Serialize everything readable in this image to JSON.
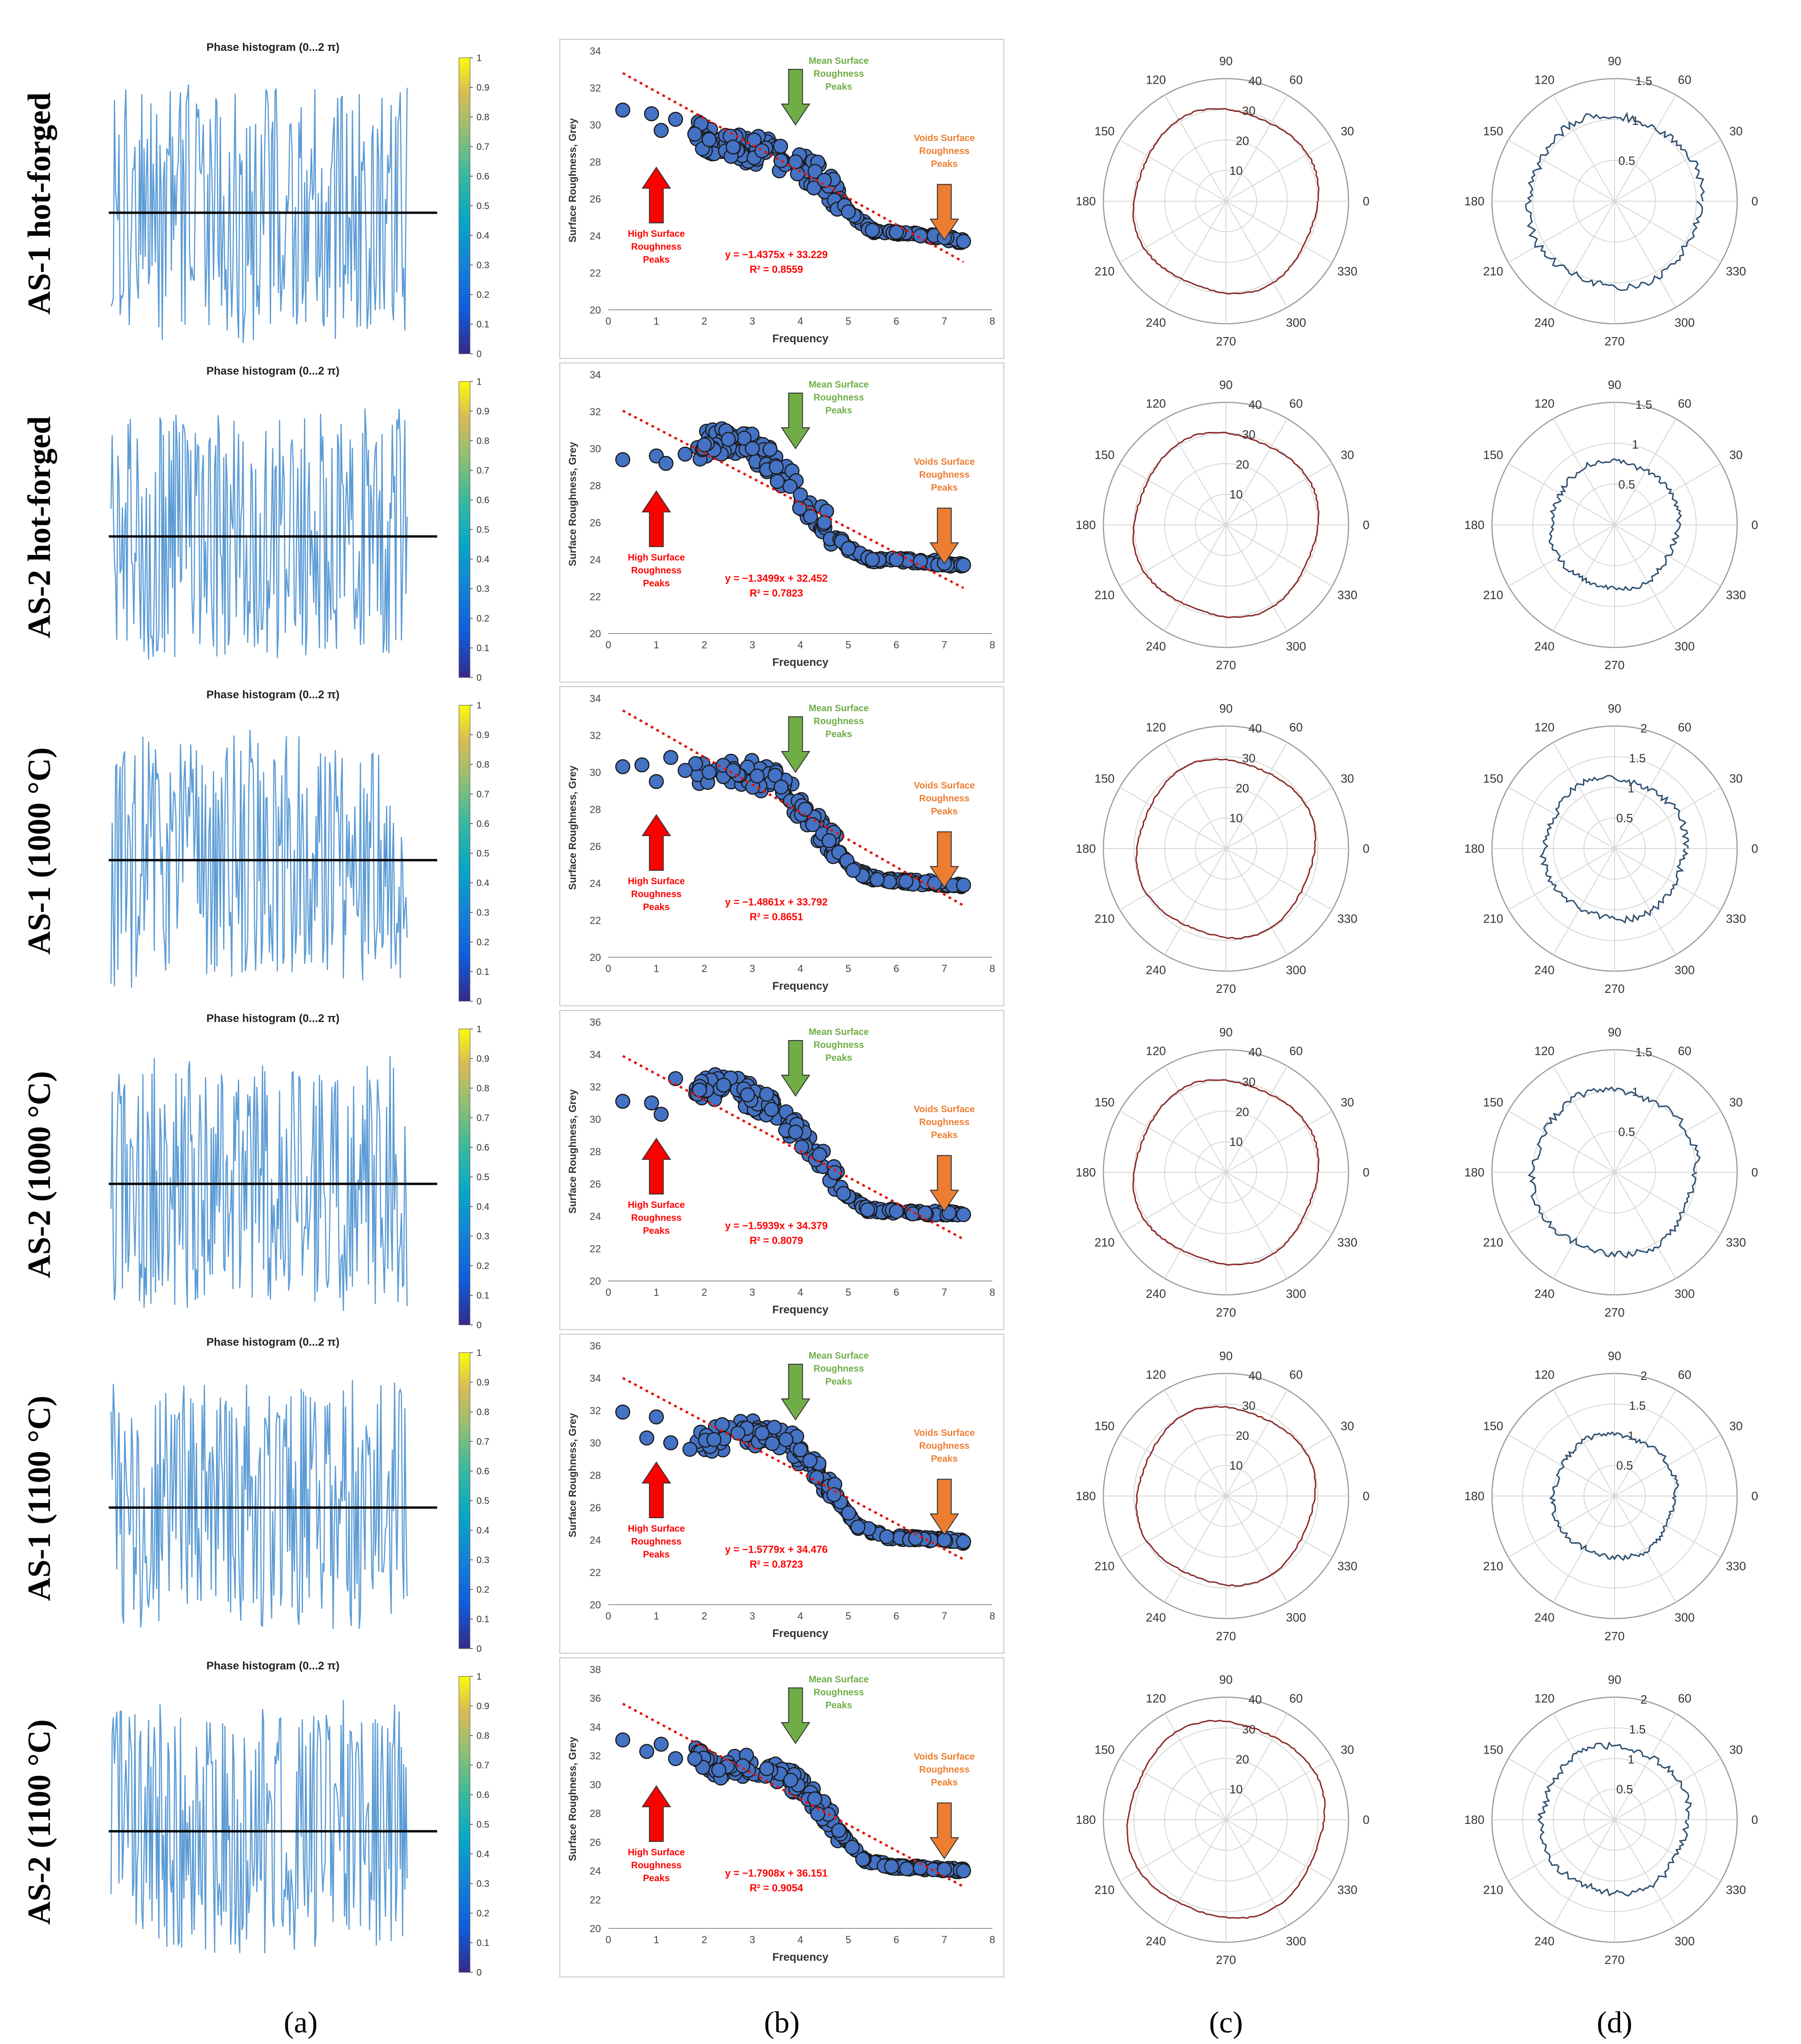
{
  "figure": {
    "row_labels": [
      "AS-1 hot-forged",
      "AS-2 hot-forged",
      "AS-1 (1000 °C)",
      "AS-2 (1000 °C)",
      "AS-1 (1100 °C)",
      "AS-2 (1100 °C)"
    ],
    "column_labels": [
      "(a)",
      "(b)",
      "(c)",
      "(d)"
    ]
  },
  "colors": {
    "phase_line": "#5b9bd5",
    "scatter_fill": "#4472c4",
    "trend": "#e3140f",
    "polar_c": "#8b2a2a",
    "polar_d": "#2f4f6f",
    "green": "#70ad47",
    "orange": "#ed7d31",
    "red": "#ff0000"
  },
  "phase": {
    "title": "Phase histogram (0...2 π)",
    "colorbar_ticks": [
      "0",
      "0.1",
      "0.2",
      "0.3",
      "0.4",
      "0.5",
      "0.6",
      "0.7",
      "0.8",
      "0.9",
      "1"
    ],
    "colormap": "parula"
  },
  "roughness": {
    "xlabel": "Frequency",
    "ylabel": "Surface Roughness, Grey",
    "x_ticks": [
      "0",
      "1",
      "2",
      "3",
      "4",
      "5",
      "6",
      "7",
      "8"
    ],
    "annot_high": "High Surface Roughness Peaks",
    "annot_mean": "Mean Surface Roughness Peaks",
    "annot_voids": "Voids Surface Roughness Peaks"
  },
  "polar_c": {
    "radial_ticks": [
      "10",
      "20",
      "30",
      "40"
    ],
    "angles": [
      "0",
      "30",
      "60",
      "90",
      "120",
      "150",
      "180",
      "210",
      "240",
      "270",
      "300",
      "330"
    ]
  },
  "polar_d": {
    "angles": [
      "0",
      "30",
      "60",
      "90",
      "120",
      "150",
      "180",
      "210",
      "240",
      "270",
      "300",
      "330"
    ]
  },
  "chart_data": [
    {
      "type": "line",
      "panel": "a",
      "row": 1,
      "title": "Phase histogram (0...2 π)",
      "colorbar": [
        0,
        1
      ]
    },
    {
      "type": "scatter",
      "panel": "b",
      "row": 1,
      "xlabel": "Frequency",
      "ylabel": "Surface Roughness, Grey",
      "xlim": [
        0,
        8
      ],
      "ylim": [
        20,
        34
      ],
      "y_ticks": [
        "20",
        "22",
        "24",
        "26",
        "28",
        "30",
        "32",
        "34"
      ],
      "equation": "y = −1.4375x + 33.229",
      "r2": "R² = 0.8559",
      "slope": -1.4375,
      "intercept": 33.229,
      "x": [
        0.3,
        0.9,
        1.1,
        1.4,
        1.8,
        2.1,
        2.6,
        3.2,
        3.9,
        4.5,
        5.0,
        5.5,
        6.0,
        6.5,
        7.0,
        7.4
      ],
      "y": [
        30.8,
        30.6,
        29.7,
        30.3,
        29.5,
        29.2,
        28.8,
        28.6,
        28.0,
        27.0,
        25.3,
        24.3,
        24.2,
        24.0,
        23.9,
        23.7
      ]
    },
    {
      "type": "polar",
      "panel": "c",
      "row": 1,
      "rlim": [
        0,
        40
      ],
      "r_ticks": [
        "10",
        "20",
        "30",
        "40"
      ],
      "radius_mean": 30
    },
    {
      "type": "polar",
      "panel": "d",
      "row": 1,
      "rlim": [
        0,
        1.5
      ],
      "r_ticks": [
        "0.5",
        "1",
        "1.5"
      ],
      "radius_mean": 1.05
    },
    {
      "type": "line",
      "panel": "a",
      "row": 2,
      "title": "Phase histogram (0...2 π)",
      "colorbar": [
        0,
        1
      ]
    },
    {
      "type": "scatter",
      "panel": "b",
      "row": 2,
      "xlabel": "Frequency",
      "ylabel": "Surface Roughness, Grey",
      "xlim": [
        0,
        8
      ],
      "ylim": [
        20,
        34
      ],
      "y_ticks": [
        "20",
        "22",
        "24",
        "26",
        "28",
        "30",
        "32",
        "34"
      ],
      "equation": "y = −1.3499x + 32.452",
      "r2": "R² = 0.7823",
      "slope": -1.3499,
      "intercept": 32.452,
      "x": [
        0.3,
        1.0,
        1.2,
        1.6,
        2.0,
        2.5,
        3.0,
        3.5,
        4.0,
        4.5,
        5.0,
        5.5,
        6.0,
        6.5,
        7.0,
        7.4
      ],
      "y": [
        29.4,
        29.6,
        29.2,
        29.7,
        30.2,
        30.5,
        30.0,
        29.0,
        27.5,
        26.0,
        24.6,
        24.0,
        24.0,
        23.9,
        23.8,
        23.7
      ]
    },
    {
      "type": "polar",
      "panel": "c",
      "row": 2,
      "rlim": [
        0,
        40
      ],
      "r_ticks": [
        "10",
        "20",
        "30",
        "40"
      ],
      "radius_mean": 30
    },
    {
      "type": "polar",
      "panel": "d",
      "row": 2,
      "rlim": [
        0,
        1.5
      ],
      "r_ticks": [
        "0.5",
        "1",
        "1.5"
      ],
      "radius_mean": 0.78
    },
    {
      "type": "line",
      "panel": "a",
      "row": 3,
      "title": "Phase histogram (0...2 π)",
      "colorbar": [
        0,
        1
      ]
    },
    {
      "type": "scatter",
      "panel": "b",
      "row": 3,
      "xlabel": "Frequency",
      "ylabel": "Surface Roughness, Grey",
      "xlim": [
        0,
        8
      ],
      "ylim": [
        20,
        34
      ],
      "y_ticks": [
        "20",
        "22",
        "24",
        "26",
        "28",
        "30",
        "32",
        "34"
      ],
      "equation": "y = −1.4861x + 33.792",
      "r2": "R² = 0.8651",
      "slope": -1.4861,
      "intercept": 33.792,
      "x": [
        0.3,
        0.7,
        1.0,
        1.3,
        1.6,
        2.1,
        2.6,
        3.1,
        3.6,
        4.1,
        4.6,
        5.1,
        5.6,
        6.2,
        6.8,
        7.4
      ],
      "y": [
        30.3,
        30.4,
        29.5,
        30.8,
        30.1,
        30.0,
        30.1,
        29.8,
        29.2,
        28.0,
        26.3,
        24.7,
        24.2,
        24.1,
        24.0,
        23.9
      ]
    },
    {
      "type": "polar",
      "panel": "c",
      "row": 3,
      "rlim": [
        0,
        40
      ],
      "r_ticks": [
        "10",
        "20",
        "30",
        "40"
      ],
      "radius_mean": 29
    },
    {
      "type": "polar",
      "panel": "d",
      "row": 3,
      "rlim": [
        0,
        2
      ],
      "r_ticks": [
        "0.5",
        "1",
        "1.5",
        "2"
      ],
      "radius_mean": 1.15
    },
    {
      "type": "line",
      "panel": "a",
      "row": 4,
      "title": "Phase histogram (0...2 π)",
      "colorbar": [
        0,
        1
      ]
    },
    {
      "type": "scatter",
      "panel": "b",
      "row": 4,
      "xlabel": "Frequency",
      "ylabel": "Surface Roughness, Grey",
      "xlim": [
        0,
        8
      ],
      "ylim": [
        20,
        36
      ],
      "y_ticks": [
        "20",
        "22",
        "24",
        "26",
        "28",
        "30",
        "32",
        "34",
        "36"
      ],
      "equation": "y = −1.5939x + 34.379",
      "r2": "R² = 0.8079",
      "slope": -1.5939,
      "intercept": 34.379,
      "x": [
        0.3,
        0.9,
        1.1,
        1.4,
        1.9,
        2.4,
        2.9,
        3.4,
        3.9,
        4.4,
        4.9,
        5.4,
        6.0,
        6.6,
        7.1,
        7.4
      ],
      "y": [
        31.1,
        31.0,
        30.3,
        32.5,
        31.8,
        32.1,
        31.5,
        30.6,
        29.2,
        27.8,
        25.4,
        24.4,
        24.3,
        24.2,
        24.2,
        24.1
      ]
    },
    {
      "type": "polar",
      "panel": "c",
      "row": 4,
      "rlim": [
        0,
        40
      ],
      "r_ticks": [
        "10",
        "20",
        "30",
        "40"
      ],
      "radius_mean": 30
    },
    {
      "type": "polar",
      "panel": "d",
      "row": 4,
      "rlim": [
        0,
        1.5
      ],
      "r_ticks": [
        "0.5",
        "1",
        "1.5"
      ],
      "radius_mean": 1.0
    },
    {
      "type": "line",
      "panel": "a",
      "row": 5,
      "title": "Phase histogram (0...2 π)",
      "colorbar": [
        0,
        1
      ]
    },
    {
      "type": "scatter",
      "panel": "b",
      "row": 5,
      "xlabel": "Frequency",
      "ylabel": "Surface Roughness, Grey",
      "xlim": [
        0,
        8
      ],
      "ylim": [
        20,
        36
      ],
      "y_ticks": [
        "20",
        "22",
        "24",
        "26",
        "28",
        "30",
        "32",
        "34",
        "36"
      ],
      "equation": "y = −1.5779x + 34.476",
      "r2": "R² = 0.8723",
      "slope": -1.5779,
      "intercept": 34.476,
      "x": [
        0.3,
        0.8,
        1.0,
        1.3,
        1.7,
        2.2,
        2.7,
        3.2,
        3.7,
        4.2,
        4.7,
        5.2,
        5.8,
        6.4,
        7.0,
        7.4
      ],
      "y": [
        31.9,
        30.3,
        31.6,
        30.0,
        29.6,
        30.2,
        30.6,
        30.6,
        30.2,
        28.9,
        26.8,
        24.8,
        24.2,
        24.1,
        24.0,
        23.9
      ]
    },
    {
      "type": "polar",
      "panel": "c",
      "row": 5,
      "rlim": [
        0,
        40
      ],
      "r_ticks": [
        "10",
        "20",
        "30",
        "40"
      ],
      "radius_mean": 29
    },
    {
      "type": "polar",
      "panel": "d",
      "row": 5,
      "rlim": [
        0,
        2
      ],
      "r_ticks": [
        "0.5",
        "1",
        "1.5",
        "2"
      ],
      "radius_mean": 1.0
    },
    {
      "type": "line",
      "panel": "a",
      "row": 6,
      "title": "Phase histogram (0...2 π)",
      "colorbar": [
        0,
        1
      ]
    },
    {
      "type": "scatter",
      "panel": "b",
      "row": 6,
      "xlabel": "Frequency",
      "ylabel": "Surface Roughness, Grey",
      "xlim": [
        0,
        8
      ],
      "ylim": [
        20,
        38
      ],
      "y_ticks": [
        "20",
        "22",
        "24",
        "26",
        "28",
        "30",
        "32",
        "34",
        "36",
        "38"
      ],
      "equation": "y = −1.7908x + 36.151",
      "r2": "R² = 0.9054",
      "slope": -1.7908,
      "intercept": 36.151,
      "x": [
        0.3,
        0.8,
        1.1,
        1.4,
        1.8,
        2.3,
        2.8,
        3.3,
        3.8,
        4.3,
        4.8,
        5.3,
        5.9,
        6.5,
        7.0,
        7.4
      ],
      "y": [
        33.1,
        32.3,
        32.8,
        31.8,
        31.8,
        31.0,
        31.3,
        31.1,
        30.3,
        29.0,
        26.8,
        24.8,
        24.3,
        24.2,
        24.1,
        24.0
      ]
    },
    {
      "type": "polar",
      "panel": "c",
      "row": 6,
      "rlim": [
        0,
        40
      ],
      "r_ticks": [
        "10",
        "20",
        "30",
        "40"
      ],
      "radius_mean": 32
    },
    {
      "type": "polar",
      "panel": "d",
      "row": 6,
      "rlim": [
        0,
        2
      ],
      "r_ticks": [
        "0.5",
        "1",
        "1.5",
        "2"
      ],
      "radius_mean": 1.2
    }
  ]
}
